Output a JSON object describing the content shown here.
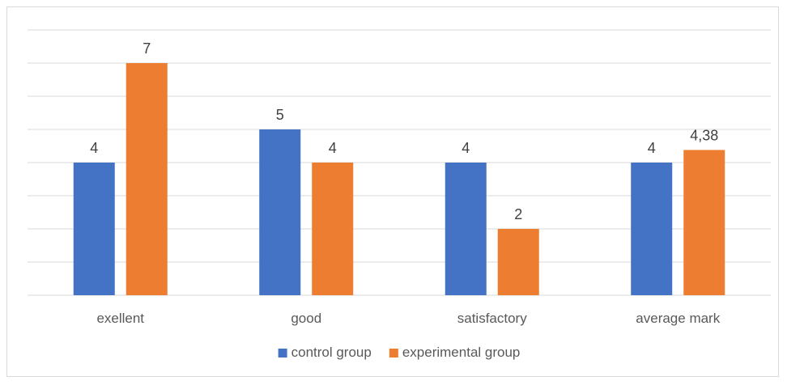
{
  "chart_data": {
    "type": "bar",
    "categories": [
      "exellent",
      "good",
      "satisfactory",
      "average mark"
    ],
    "series": [
      {
        "name": "control group",
        "values": [
          4,
          5,
          4,
          4
        ],
        "labels": [
          "4",
          "5",
          "4",
          "4"
        ],
        "color": "#4472C4"
      },
      {
        "name": "experimental group",
        "values": [
          7,
          4,
          2,
          4.38
        ],
        "labels": [
          "7",
          "4",
          "2",
          "4,38"
        ],
        "color": "#ED7D31"
      }
    ],
    "title": "",
    "xlabel": "",
    "ylabel": "",
    "ylim": [
      0,
      8
    ],
    "grid": true,
    "legend": "bottom",
    "gridline_color": "#d9d9d9"
  }
}
